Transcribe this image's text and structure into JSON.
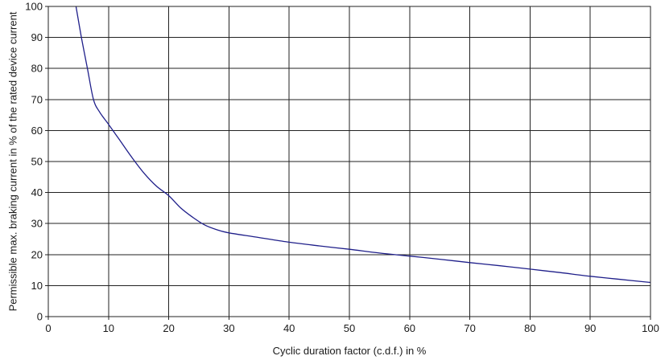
{
  "chart_data": {
    "type": "line",
    "title": "",
    "xlabel": "Cyclic duration factor (c.d.f.) in %",
    "ylabel": "Permissible max. braking current in % of the rated device current",
    "xlim": [
      0,
      100
    ],
    "ylim": [
      0,
      100
    ],
    "x_ticks": [
      0,
      10,
      20,
      30,
      40,
      50,
      60,
      70,
      80,
      90,
      100
    ],
    "y_ticks": [
      0,
      10,
      20,
      30,
      40,
      50,
      60,
      70,
      80,
      90,
      100
    ],
    "grid": true,
    "line_color": "#1f1f8a",
    "series": [
      {
        "x": [
          4.6,
          5.5,
          6.5,
          7.5,
          8.5,
          10,
          12,
          14,
          16,
          18,
          20,
          22,
          24,
          26,
          28,
          30,
          35,
          40,
          45,
          50,
          55,
          60,
          65,
          70,
          75,
          80,
          85,
          90,
          95,
          100
        ],
        "y": [
          100,
          90,
          80,
          70,
          66,
          62,
          56.5,
          51,
          46,
          42,
          39,
          35,
          32,
          29.5,
          28,
          27,
          25.5,
          24,
          22.8,
          21.7,
          20.5,
          19.5,
          18.5,
          17.4,
          16.4,
          15.3,
          14.2,
          13,
          12,
          11
        ]
      }
    ]
  }
}
